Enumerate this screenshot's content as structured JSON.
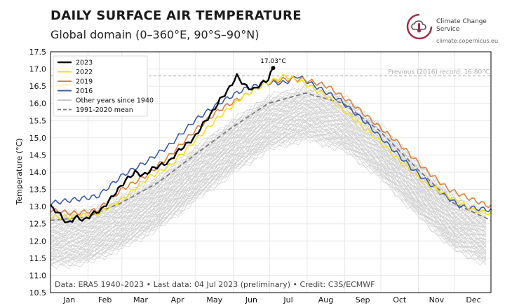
{
  "header": {
    "title": "DAILY SURFACE AIR TEMPERATURE",
    "subtitle": "Global domain (0–360°E, 90°S–90°N)"
  },
  "brand": {
    "name": "Climate Change Service",
    "url": "climate.copernicus.eu",
    "logo_icon": "thermometer-cloud-icon",
    "accent": "#a02c4a"
  },
  "footer": {
    "credit": "Data: ERA5 1940–2023 • Last data: 04 Jul 2023 (preliminary) • Credit: C3S/ECMWF"
  },
  "chart_data": {
    "type": "line",
    "ylabel": "Temperature (°C)",
    "ylim": [
      10.5,
      17.5
    ],
    "yticks": [
      "10.5",
      "11.0",
      "11.5",
      "12.0",
      "12.5",
      "13.0",
      "13.5",
      "14.0",
      "14.5",
      "15.0",
      "15.5",
      "16.0",
      "16.5",
      "17.0",
      "17.5"
    ],
    "months": [
      "Jan",
      "Feb",
      "Mar",
      "Apr",
      "May",
      "Jun",
      "Jul",
      "Aug",
      "Sep",
      "Oct",
      "Nov",
      "Dec"
    ],
    "grid": true,
    "legend_position": "top-left",
    "record": {
      "label": "Previous (2016) record: 16.80°C",
      "value": 16.8
    },
    "annotation": {
      "label": "17.03°C",
      "day": 185,
      "value": 17.03
    },
    "legend": [
      {
        "name": "2023",
        "color": "#000000",
        "style": "solid"
      },
      {
        "name": "2022",
        "color": "#f2e020",
        "style": "solid"
      },
      {
        "name": "2019",
        "color": "#d9823b",
        "style": "solid"
      },
      {
        "name": "2016",
        "color": "#3b5ba8",
        "style": "solid"
      },
      {
        "name": "Other years since 1940",
        "color": "#c8c8c8",
        "style": "solid"
      },
      {
        "name": "1991-2020 mean",
        "color": "#7a7a7a",
        "style": "dashed"
      }
    ],
    "series": [
      {
        "name": "2023",
        "color": "#000000",
        "points": [
          [
            1,
            13.0
          ],
          [
            8,
            12.8
          ],
          [
            15,
            12.5
          ],
          [
            22,
            12.7
          ],
          [
            29,
            12.6
          ],
          [
            36,
            12.8
          ],
          [
            43,
            12.9
          ],
          [
            50,
            13.2
          ],
          [
            57,
            13.5
          ],
          [
            64,
            13.8
          ],
          [
            71,
            14.0
          ],
          [
            78,
            13.9
          ],
          [
            85,
            14.1
          ],
          [
            92,
            14.2
          ],
          [
            99,
            14.3
          ],
          [
            106,
            14.6
          ],
          [
            113,
            14.8
          ],
          [
            120,
            15.0
          ],
          [
            127,
            15.4
          ],
          [
            134,
            15.7
          ],
          [
            141,
            16.1
          ],
          [
            148,
            16.4
          ],
          [
            155,
            16.8
          ],
          [
            162,
            16.5
          ],
          [
            169,
            16.4
          ],
          [
            176,
            16.6
          ],
          [
            181,
            16.7
          ],
          [
            185,
            17.03
          ]
        ]
      },
      {
        "name": "2022",
        "color": "#f2e020",
        "points": [
          [
            1,
            12.7
          ],
          [
            20,
            12.7
          ],
          [
            40,
            12.8
          ],
          [
            60,
            13.2
          ],
          [
            80,
            13.8
          ],
          [
            100,
            14.2
          ],
          [
            120,
            14.9
          ],
          [
            140,
            15.6
          ],
          [
            160,
            16.2
          ],
          [
            180,
            16.6
          ],
          [
            195,
            16.8
          ],
          [
            210,
            16.6
          ],
          [
            230,
            16.2
          ],
          [
            250,
            15.6
          ],
          [
            270,
            15.0
          ],
          [
            290,
            14.3
          ],
          [
            310,
            13.7
          ],
          [
            330,
            13.3
          ],
          [
            350,
            12.9
          ],
          [
            365,
            12.8
          ]
        ]
      },
      {
        "name": "2019",
        "color": "#d9823b",
        "points": [
          [
            1,
            12.9
          ],
          [
            20,
            12.8
          ],
          [
            40,
            12.9
          ],
          [
            60,
            13.5
          ],
          [
            80,
            13.9
          ],
          [
            100,
            14.5
          ],
          [
            120,
            15.2
          ],
          [
            140,
            15.8
          ],
          [
            160,
            16.2
          ],
          [
            180,
            16.6
          ],
          [
            195,
            16.7
          ],
          [
            210,
            16.7
          ],
          [
            230,
            16.5
          ],
          [
            250,
            16.0
          ],
          [
            270,
            15.4
          ],
          [
            290,
            14.8
          ],
          [
            310,
            14.1
          ],
          [
            330,
            13.5
          ],
          [
            350,
            13.2
          ],
          [
            365,
            13.0
          ]
        ]
      },
      {
        "name": "2016",
        "color": "#3b5ba8",
        "points": [
          [
            1,
            13.1
          ],
          [
            20,
            13.2
          ],
          [
            40,
            13.3
          ],
          [
            60,
            13.9
          ],
          [
            80,
            14.3
          ],
          [
            100,
            14.8
          ],
          [
            120,
            15.5
          ],
          [
            140,
            16.0
          ],
          [
            160,
            16.4
          ],
          [
            180,
            16.6
          ],
          [
            195,
            16.6
          ],
          [
            205,
            16.8
          ],
          [
            220,
            16.5
          ],
          [
            240,
            16.1
          ],
          [
            260,
            15.5
          ],
          [
            280,
            14.8
          ],
          [
            300,
            14.1
          ],
          [
            320,
            13.5
          ],
          [
            340,
            13.0
          ],
          [
            365,
            12.9
          ]
        ]
      }
    ],
    "mean_1991_2020": {
      "name": "1991-2020 mean",
      "points": [
        [
          1,
          12.6
        ],
        [
          31,
          12.7
        ],
        [
          59,
          13.1
        ],
        [
          90,
          13.7
        ],
        [
          120,
          14.5
        ],
        [
          151,
          15.3
        ],
        [
          181,
          16.0
        ],
        [
          212,
          16.3
        ],
        [
          243,
          16.0
        ],
        [
          273,
          15.2
        ],
        [
          304,
          14.1
        ],
        [
          334,
          13.1
        ],
        [
          365,
          12.6
        ]
      ]
    },
    "other_years": {
      "name": "Other years since 1940",
      "spread_below": 1.3,
      "spread_above": 0.15
    }
  }
}
